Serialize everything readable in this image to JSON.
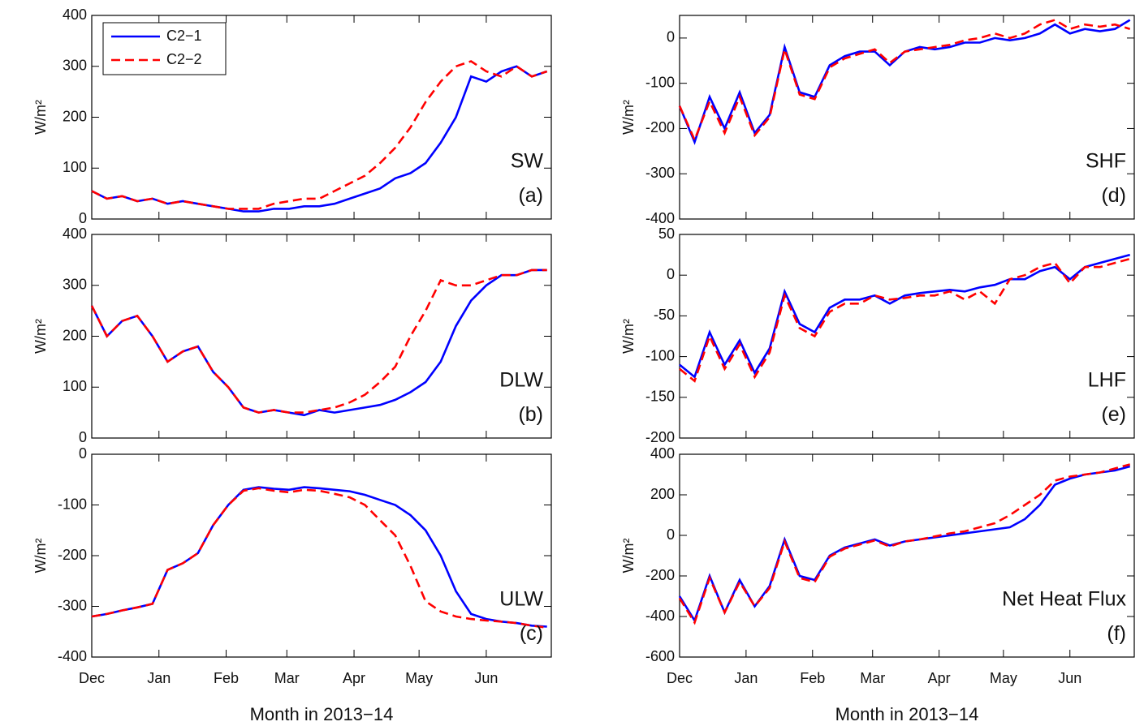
{
  "chart_data": [
    {
      "type": "line",
      "legend": "upper left",
      "annotations": [
        "SW",
        "(a)"
      ],
      "ylabel": "W/m²",
      "ylim": [
        0,
        400
      ],
      "yticks": [
        0,
        100,
        200,
        300,
        400
      ],
      "xlim": [
        0,
        212
      ],
      "x": [
        0,
        7,
        14,
        21,
        28,
        35,
        42,
        49,
        56,
        63,
        70,
        77,
        84,
        91,
        98,
        105,
        112,
        119,
        126,
        133,
        140,
        147,
        154,
        161,
        168,
        175,
        182,
        189,
        196,
        203,
        210
      ],
      "series": [
        {
          "name": "C2−1",
          "color": "#0000ff",
          "style": "solid",
          "values": [
            55,
            40,
            45,
            35,
            40,
            30,
            35,
            30,
            25,
            20,
            15,
            15,
            20,
            20,
            25,
            25,
            30,
            40,
            50,
            60,
            80,
            90,
            110,
            150,
            200,
            280,
            270,
            290,
            300,
            280,
            290
          ]
        },
        {
          "name": "C2−2",
          "color": "#ff0000",
          "style": "dashed",
          "values": [
            55,
            40,
            45,
            35,
            40,
            30,
            35,
            30,
            25,
            20,
            20,
            20,
            30,
            35,
            40,
            40,
            55,
            70,
            85,
            110,
            140,
            180,
            230,
            270,
            300,
            310,
            290,
            280,
            300,
            280,
            290
          ]
        }
      ]
    },
    {
      "type": "line",
      "annotations": [
        "DLW",
        "(b)"
      ],
      "ylabel": "W/m²",
      "ylim": [
        0,
        400
      ],
      "yticks": [
        0,
        100,
        200,
        300,
        400
      ],
      "xlim": [
        0,
        212
      ],
      "x": [
        0,
        7,
        14,
        21,
        28,
        35,
        42,
        49,
        56,
        63,
        70,
        77,
        84,
        91,
        98,
        105,
        112,
        119,
        126,
        133,
        140,
        147,
        154,
        161,
        168,
        175,
        182,
        189,
        196,
        203,
        210
      ],
      "series": [
        {
          "name": "C2−1",
          "color": "#0000ff",
          "style": "solid",
          "values": [
            260,
            200,
            230,
            240,
            200,
            150,
            170,
            180,
            130,
            100,
            60,
            50,
            55,
            50,
            45,
            55,
            50,
            55,
            60,
            65,
            75,
            90,
            110,
            150,
            220,
            270,
            300,
            320,
            320,
            330,
            330
          ]
        },
        {
          "name": "C2−2",
          "color": "#ff0000",
          "style": "dashed",
          "values": [
            260,
            200,
            230,
            240,
            200,
            150,
            170,
            180,
            130,
            100,
            60,
            50,
            55,
            50,
            50,
            55,
            60,
            70,
            85,
            110,
            140,
            200,
            250,
            310,
            300,
            300,
            310,
            320,
            320,
            330,
            330
          ]
        }
      ]
    },
    {
      "type": "line",
      "annotations": [
        "ULW",
        "(c)"
      ],
      "ylabel": "W/m²",
      "xlabel": "Month in 2013−14",
      "ylim": [
        -400,
        0
      ],
      "yticks": [
        -400,
        -300,
        -200,
        -100,
        0
      ],
      "xlim": [
        0,
        212
      ],
      "xticks": [
        {
          "value": 0,
          "label": "Dec"
        },
        {
          "value": 31,
          "label": "Jan"
        },
        {
          "value": 62,
          "label": "Feb"
        },
        {
          "value": 90,
          "label": "Mar"
        },
        {
          "value": 121,
          "label": "Apr"
        },
        {
          "value": 151,
          "label": "May"
        },
        {
          "value": 182,
          "label": "Jun"
        }
      ],
      "x": [
        0,
        7,
        14,
        21,
        28,
        35,
        42,
        49,
        56,
        63,
        70,
        77,
        84,
        91,
        98,
        105,
        112,
        119,
        126,
        133,
        140,
        147,
        154,
        161,
        168,
        175,
        182,
        189,
        196,
        203,
        210
      ],
      "series": [
        {
          "name": "C2−1",
          "color": "#0000ff",
          "style": "solid",
          "values": [
            -320,
            -315,
            -308,
            -302,
            -295,
            -228,
            -215,
            -195,
            -140,
            -100,
            -70,
            -65,
            -68,
            -70,
            -65,
            -67,
            -70,
            -73,
            -80,
            -90,
            -100,
            -120,
            -150,
            -200,
            -270,
            -315,
            -325,
            -330,
            -333,
            -338,
            -340
          ]
        },
        {
          "name": "C2−2",
          "color": "#ff0000",
          "style": "dashed",
          "values": [
            -320,
            -315,
            -308,
            -302,
            -295,
            -228,
            -215,
            -195,
            -140,
            -100,
            -72,
            -67,
            -72,
            -75,
            -70,
            -72,
            -78,
            -85,
            -100,
            -130,
            -160,
            -220,
            -290,
            -310,
            -320,
            -325,
            -328,
            -330,
            -333,
            -338,
            -342
          ]
        }
      ]
    },
    {
      "type": "line",
      "annotations": [
        "SHF",
        "(d)"
      ],
      "ylabel": "W/m²",
      "ylim": [
        -400,
        50
      ],
      "yticks": [
        -400,
        -300,
        -200,
        -100,
        0
      ],
      "xlim": [
        0,
        212
      ],
      "x": [
        0,
        7,
        14,
        21,
        28,
        35,
        42,
        49,
        56,
        63,
        70,
        77,
        84,
        91,
        98,
        105,
        112,
        119,
        126,
        133,
        140,
        147,
        154,
        161,
        168,
        175,
        182,
        189,
        196,
        203,
        210
      ],
      "series": [
        {
          "name": "C2−1",
          "color": "#0000ff",
          "style": "solid",
          "values": [
            -150,
            -230,
            -130,
            -200,
            -120,
            -210,
            -170,
            -20,
            -120,
            -130,
            -60,
            -40,
            -30,
            -30,
            -60,
            -30,
            -20,
            -25,
            -20,
            -10,
            -10,
            0,
            -5,
            0,
            10,
            30,
            10,
            20,
            15,
            20,
            40
          ]
        },
        {
          "name": "C2−2",
          "color": "#ff0000",
          "style": "dashed",
          "values": [
            -150,
            -225,
            -140,
            -210,
            -130,
            -215,
            -175,
            -25,
            -125,
            -135,
            -65,
            -45,
            -35,
            -25,
            -55,
            -30,
            -25,
            -20,
            -15,
            -5,
            0,
            10,
            0,
            10,
            30,
            40,
            20,
            30,
            25,
            30,
            20
          ]
        }
      ]
    },
    {
      "type": "line",
      "annotations": [
        "LHF",
        "(e)"
      ],
      "ylabel": "W/m²",
      "ylim": [
        -200,
        50
      ],
      "yticks": [
        -200,
        -150,
        -100,
        -50,
        0,
        50
      ],
      "xlim": [
        0,
        212
      ],
      "x": [
        0,
        7,
        14,
        21,
        28,
        35,
        42,
        49,
        56,
        63,
        70,
        77,
        84,
        91,
        98,
        105,
        112,
        119,
        126,
        133,
        140,
        147,
        154,
        161,
        168,
        175,
        182,
        189,
        196,
        203,
        210
      ],
      "series": [
        {
          "name": "C2−1",
          "color": "#0000ff",
          "style": "solid",
          "values": [
            -110,
            -125,
            -70,
            -110,
            -80,
            -120,
            -90,
            -20,
            -60,
            -70,
            -40,
            -30,
            -30,
            -25,
            -35,
            -25,
            -22,
            -20,
            -18,
            -20,
            -15,
            -12,
            -5,
            -5,
            5,
            10,
            -5,
            10,
            15,
            20,
            25
          ]
        },
        {
          "name": "C2−2",
          "color": "#ff0000",
          "style": "dashed",
          "values": [
            -115,
            -130,
            -75,
            -115,
            -85,
            -125,
            -95,
            -25,
            -65,
            -75,
            -45,
            -35,
            -35,
            -25,
            -30,
            -28,
            -25,
            -25,
            -20,
            -30,
            -20,
            -35,
            -5,
            0,
            10,
            15,
            -10,
            10,
            10,
            15,
            20
          ]
        }
      ]
    },
    {
      "type": "line",
      "annotations": [
        "Net Heat Flux",
        "(f)"
      ],
      "ylabel": "W/m²",
      "xlabel": "Month in 2013−14",
      "ylim": [
        -600,
        400
      ],
      "yticks": [
        -600,
        -400,
        -200,
        0,
        200,
        400
      ],
      "xlim": [
        0,
        212
      ],
      "xticks": [
        {
          "value": 0,
          "label": "Dec"
        },
        {
          "value": 31,
          "label": "Jan"
        },
        {
          "value": 62,
          "label": "Feb"
        },
        {
          "value": 90,
          "label": "Mar"
        },
        {
          "value": 121,
          "label": "Apr"
        },
        {
          "value": 151,
          "label": "May"
        },
        {
          "value": 182,
          "label": "Jun"
        }
      ],
      "x": [
        0,
        7,
        14,
        21,
        28,
        35,
        42,
        49,
        56,
        63,
        70,
        77,
        84,
        91,
        98,
        105,
        112,
        119,
        126,
        133,
        140,
        147,
        154,
        161,
        168,
        175,
        182,
        189,
        196,
        203,
        210
      ],
      "series": [
        {
          "name": "C2−1",
          "color": "#0000ff",
          "style": "solid",
          "values": [
            -300,
            -420,
            -200,
            -380,
            -220,
            -350,
            -250,
            -20,
            -200,
            -220,
            -100,
            -60,
            -40,
            -20,
            -50,
            -30,
            -20,
            -10,
            0,
            10,
            20,
            30,
            40,
            80,
            150,
            250,
            280,
            300,
            310,
            320,
            340
          ]
        },
        {
          "name": "C2−2",
          "color": "#ff0000",
          "style": "dashed",
          "values": [
            -310,
            -430,
            -210,
            -380,
            -230,
            -350,
            -260,
            -30,
            -210,
            -230,
            -105,
            -65,
            -45,
            -25,
            -55,
            -30,
            -20,
            -5,
            10,
            20,
            40,
            60,
            100,
            150,
            200,
            270,
            290,
            300,
            310,
            330,
            350
          ]
        }
      ]
    }
  ]
}
